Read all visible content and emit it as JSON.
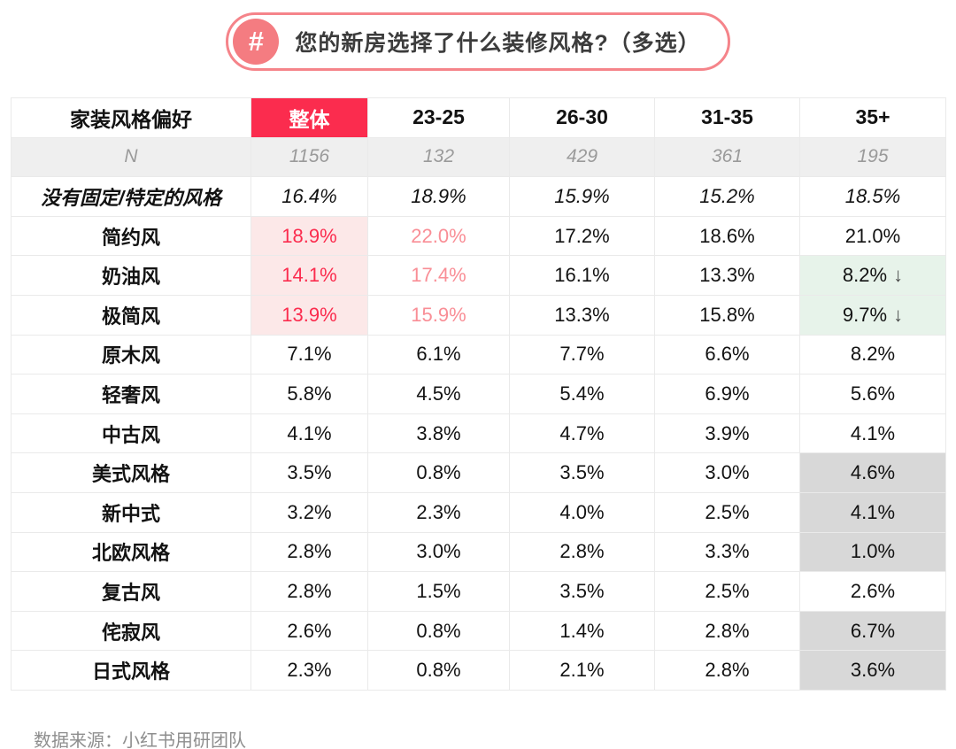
{
  "title": {
    "badge": "#",
    "text": "您的新房选择了什么装修风格?（多选）"
  },
  "colors": {
    "accent_red": "#FB2C4E",
    "highlight_pink_bg": "#FCE8E8",
    "salmon_text": "#F98E96",
    "green_bg": "#E7F3EA",
    "gray_bg": "#D8D8D8",
    "n_row_bg": "#EFEFEF",
    "pill_border": "#F5848A",
    "pill_circle": "#F47C81"
  },
  "footer": {
    "source": "数据来源：小红书用研团队"
  },
  "chart_data": {
    "type": "table",
    "title": "您的新房选择了什么装修风格?（多选）",
    "columns": [
      "家装风格偏好",
      "整体",
      "23-25",
      "26-30",
      "31-35",
      "35+"
    ],
    "n_row": {
      "label": "N",
      "values": [
        "1156",
        "132",
        "429",
        "361",
        "195"
      ]
    },
    "rows": [
      {
        "label": "没有固定/特定的风格",
        "italic": true,
        "cells": [
          {
            "v": "16.4%"
          },
          {
            "v": "18.9%"
          },
          {
            "v": "15.9%"
          },
          {
            "v": "15.2%"
          },
          {
            "v": "18.5%"
          }
        ]
      },
      {
        "label": "简约风",
        "cells": [
          {
            "v": "18.9%",
            "style": "red-pink"
          },
          {
            "v": "22.0%",
            "style": "salmon"
          },
          {
            "v": "17.2%"
          },
          {
            "v": "18.6%"
          },
          {
            "v": "21.0%"
          }
        ]
      },
      {
        "label": "奶油风",
        "cells": [
          {
            "v": "14.1%",
            "style": "red-pink"
          },
          {
            "v": "17.4%",
            "style": "salmon"
          },
          {
            "v": "16.1%"
          },
          {
            "v": "13.3%"
          },
          {
            "v": "8.2%",
            "style": "green",
            "arrow": "↓"
          }
        ]
      },
      {
        "label": "极简风",
        "cells": [
          {
            "v": "13.9%",
            "style": "red-pink"
          },
          {
            "v": "15.9%",
            "style": "salmon"
          },
          {
            "v": "13.3%"
          },
          {
            "v": "15.8%"
          },
          {
            "v": "9.7%",
            "style": "green",
            "arrow": "↓"
          }
        ]
      },
      {
        "label": "原木风",
        "cells": [
          {
            "v": "7.1%"
          },
          {
            "v": "6.1%"
          },
          {
            "v": "7.7%"
          },
          {
            "v": "6.6%"
          },
          {
            "v": "8.2%"
          }
        ]
      },
      {
        "label": "轻奢风",
        "cells": [
          {
            "v": "5.8%"
          },
          {
            "v": "4.5%"
          },
          {
            "v": "5.4%"
          },
          {
            "v": "6.9%"
          },
          {
            "v": "5.6%"
          }
        ]
      },
      {
        "label": "中古风",
        "cells": [
          {
            "v": "4.1%"
          },
          {
            "v": "3.8%"
          },
          {
            "v": "4.7%"
          },
          {
            "v": "3.9%"
          },
          {
            "v": "4.1%"
          }
        ]
      },
      {
        "label": "美式风格",
        "cells": [
          {
            "v": "3.5%"
          },
          {
            "v": "0.8%"
          },
          {
            "v": "3.5%"
          },
          {
            "v": "3.0%"
          },
          {
            "v": "4.6%",
            "style": "gray"
          }
        ]
      },
      {
        "label": "新中式",
        "cells": [
          {
            "v": "3.2%"
          },
          {
            "v": "2.3%"
          },
          {
            "v": "4.0%"
          },
          {
            "v": "2.5%"
          },
          {
            "v": "4.1%",
            "style": "gray"
          }
        ]
      },
      {
        "label": "北欧风格",
        "cells": [
          {
            "v": "2.8%"
          },
          {
            "v": "3.0%"
          },
          {
            "v": "2.8%"
          },
          {
            "v": "3.3%"
          },
          {
            "v": "1.0%",
            "style": "gray"
          }
        ]
      },
      {
        "label": "复古风",
        "cells": [
          {
            "v": "2.8%"
          },
          {
            "v": "1.5%"
          },
          {
            "v": "3.5%"
          },
          {
            "v": "2.5%"
          },
          {
            "v": "2.6%"
          }
        ]
      },
      {
        "label": "侘寂风",
        "cells": [
          {
            "v": "2.6%"
          },
          {
            "v": "0.8%"
          },
          {
            "v": "1.4%"
          },
          {
            "v": "2.8%"
          },
          {
            "v": "6.7%",
            "style": "gray"
          }
        ]
      },
      {
        "label": "日式风格",
        "cells": [
          {
            "v": "2.3%"
          },
          {
            "v": "0.8%"
          },
          {
            "v": "2.1%"
          },
          {
            "v": "2.8%"
          },
          {
            "v": "3.6%",
            "style": "gray"
          }
        ]
      }
    ]
  }
}
